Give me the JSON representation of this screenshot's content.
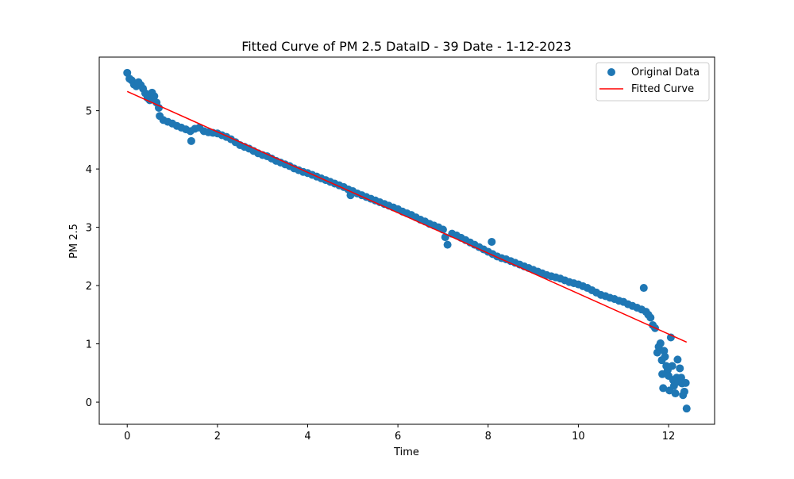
{
  "chart_data": {
    "type": "scatter",
    "title": "Fitted Curve of PM 2.5 DataID - 39 Date - 1-12-2023",
    "xlabel": "Time",
    "ylabel": "PM 2.5",
    "xlim": [
      -0.62,
      13.02
    ],
    "ylim": [
      -0.38,
      5.92
    ],
    "x_ticks": [
      0,
      2,
      4,
      6,
      8,
      10,
      12
    ],
    "y_ticks": [
      0,
      1,
      2,
      3,
      4,
      5
    ],
    "grid": false,
    "legend_position": "top-right",
    "colors": {
      "scatter": "#1f77b4",
      "fit": "#ff0000",
      "axes": "#000000"
    },
    "series": [
      {
        "name": "Original Data",
        "kind": "scatter",
        "points": [
          [
            0.0,
            5.65
          ],
          [
            0.05,
            5.55
          ],
          [
            0.1,
            5.52
          ],
          [
            0.15,
            5.45
          ],
          [
            0.2,
            5.42
          ],
          [
            0.25,
            5.49
          ],
          [
            0.3,
            5.44
          ],
          [
            0.35,
            5.38
          ],
          [
            0.4,
            5.3
          ],
          [
            0.45,
            5.22
          ],
          [
            0.5,
            5.18
          ],
          [
            0.55,
            5.31
          ],
          [
            0.6,
            5.25
          ],
          [
            0.65,
            5.14
          ],
          [
            0.7,
            5.05
          ],
          [
            0.72,
            4.91
          ],
          [
            0.8,
            4.84
          ],
          [
            0.9,
            4.81
          ],
          [
            1.0,
            4.78
          ],
          [
            1.1,
            4.74
          ],
          [
            1.2,
            4.71
          ],
          [
            1.3,
            4.68
          ],
          [
            1.4,
            4.65
          ],
          [
            1.42,
            4.48
          ],
          [
            1.5,
            4.69
          ],
          [
            1.6,
            4.71
          ],
          [
            1.7,
            4.65
          ],
          [
            1.8,
            4.63
          ],
          [
            1.9,
            4.62
          ],
          [
            2.0,
            4.61
          ],
          [
            2.1,
            4.58
          ],
          [
            2.2,
            4.55
          ],
          [
            2.3,
            4.51
          ],
          [
            2.4,
            4.46
          ],
          [
            2.5,
            4.41
          ],
          [
            2.6,
            4.38
          ],
          [
            2.7,
            4.35
          ],
          [
            2.8,
            4.31
          ],
          [
            2.9,
            4.27
          ],
          [
            3.0,
            4.24
          ],
          [
            3.1,
            4.22
          ],
          [
            3.2,
            4.18
          ],
          [
            3.3,
            4.14
          ],
          [
            3.4,
            4.11
          ],
          [
            3.5,
            4.08
          ],
          [
            3.6,
            4.05
          ],
          [
            3.7,
            4.01
          ],
          [
            3.8,
            3.98
          ],
          [
            3.9,
            3.95
          ],
          [
            4.0,
            3.93
          ],
          [
            4.1,
            3.9
          ],
          [
            4.2,
            3.87
          ],
          [
            4.3,
            3.84
          ],
          [
            4.4,
            3.81
          ],
          [
            4.5,
            3.78
          ],
          [
            4.6,
            3.75
          ],
          [
            4.7,
            3.72
          ],
          [
            4.8,
            3.69
          ],
          [
            4.9,
            3.65
          ],
          [
            4.95,
            3.55
          ],
          [
            5.0,
            3.62
          ],
          [
            5.1,
            3.58
          ],
          [
            5.2,
            3.55
          ],
          [
            5.3,
            3.52
          ],
          [
            5.4,
            3.49
          ],
          [
            5.5,
            3.46
          ],
          [
            5.6,
            3.43
          ],
          [
            5.7,
            3.4
          ],
          [
            5.8,
            3.37
          ],
          [
            5.9,
            3.34
          ],
          [
            6.0,
            3.31
          ],
          [
            6.1,
            3.27
          ],
          [
            6.2,
            3.24
          ],
          [
            6.3,
            3.21
          ],
          [
            6.4,
            3.17
          ],
          [
            6.5,
            3.13
          ],
          [
            6.6,
            3.1
          ],
          [
            6.7,
            3.06
          ],
          [
            6.8,
            3.03
          ],
          [
            6.9,
            3.0
          ],
          [
            7.0,
            2.96
          ],
          [
            7.05,
            2.83
          ],
          [
            7.1,
            2.7
          ],
          [
            7.2,
            2.89
          ],
          [
            7.3,
            2.86
          ],
          [
            7.4,
            2.82
          ],
          [
            7.5,
            2.78
          ],
          [
            7.6,
            2.74
          ],
          [
            7.7,
            2.7
          ],
          [
            7.8,
            2.66
          ],
          [
            7.9,
            2.62
          ],
          [
            8.0,
            2.58
          ],
          [
            8.08,
            2.75
          ],
          [
            8.1,
            2.54
          ],
          [
            8.2,
            2.5
          ],
          [
            8.3,
            2.47
          ],
          [
            8.4,
            2.45
          ],
          [
            8.5,
            2.42
          ],
          [
            8.6,
            2.39
          ],
          [
            8.7,
            2.36
          ],
          [
            8.8,
            2.33
          ],
          [
            8.9,
            2.3
          ],
          [
            9.0,
            2.27
          ],
          [
            9.1,
            2.24
          ],
          [
            9.2,
            2.21
          ],
          [
            9.3,
            2.18
          ],
          [
            9.4,
            2.16
          ],
          [
            9.5,
            2.14
          ],
          [
            9.6,
            2.12
          ],
          [
            9.7,
            2.09
          ],
          [
            9.8,
            2.06
          ],
          [
            9.9,
            2.04
          ],
          [
            10.0,
            2.02
          ],
          [
            10.1,
            1.99
          ],
          [
            10.2,
            1.96
          ],
          [
            10.3,
            1.92
          ],
          [
            10.4,
            1.88
          ],
          [
            10.5,
            1.84
          ],
          [
            10.6,
            1.82
          ],
          [
            10.7,
            1.79
          ],
          [
            10.8,
            1.77
          ],
          [
            10.9,
            1.74
          ],
          [
            11.0,
            1.72
          ],
          [
            11.1,
            1.68
          ],
          [
            11.2,
            1.65
          ],
          [
            11.3,
            1.62
          ],
          [
            11.4,
            1.59
          ],
          [
            11.45,
            1.96
          ],
          [
            11.5,
            1.55
          ],
          [
            11.55,
            1.5
          ],
          [
            11.6,
            1.45
          ],
          [
            11.65,
            1.32
          ],
          [
            11.7,
            1.27
          ],
          [
            11.75,
            0.85
          ],
          [
            11.78,
            0.95
          ],
          [
            11.82,
            1.01
          ],
          [
            11.85,
            0.72
          ],
          [
            11.86,
            0.48
          ],
          [
            11.88,
            0.24
          ],
          [
            11.9,
            0.88
          ],
          [
            11.92,
            0.78
          ],
          [
            11.95,
            0.62
          ],
          [
            11.98,
            0.55
          ],
          [
            12.0,
            0.45
          ],
          [
            12.02,
            0.2
          ],
          [
            12.05,
            1.11
          ],
          [
            12.08,
            0.62
          ],
          [
            12.1,
            0.38
          ],
          [
            12.12,
            0.28
          ],
          [
            12.15,
            0.15
          ],
          [
            12.18,
            0.42
          ],
          [
            12.2,
            0.73
          ],
          [
            12.22,
            0.35
          ],
          [
            12.25,
            0.58
          ],
          [
            12.28,
            0.42
          ],
          [
            12.3,
            0.32
          ],
          [
            12.32,
            0.12
          ],
          [
            12.35,
            0.18
          ],
          [
            12.38,
            0.33
          ],
          [
            12.4,
            -0.11
          ]
        ]
      },
      {
        "name": "Fitted Curve",
        "kind": "line",
        "points": [
          [
            0.0,
            5.33
          ],
          [
            12.4,
            1.03
          ]
        ]
      }
    ]
  }
}
